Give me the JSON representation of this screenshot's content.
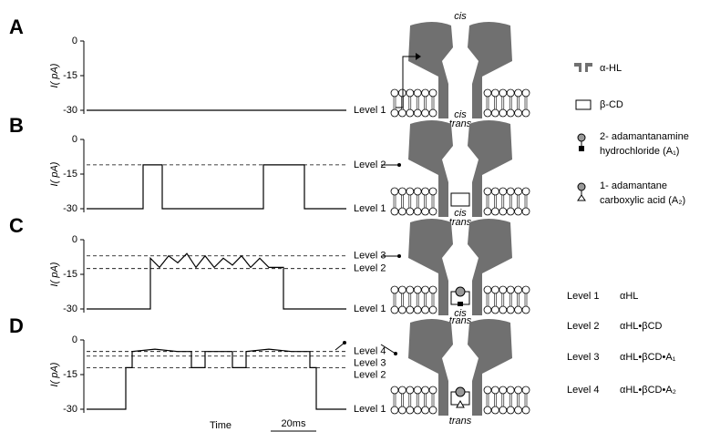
{
  "chart_data": [
    {
      "type": "line",
      "panel": "A",
      "ylabel": "I( pA)",
      "xlim": [
        0,
        114
      ],
      "ylim": [
        -30,
        0
      ],
      "yticks": [
        0,
        -15,
        -30
      ],
      "color": "#000000",
      "x": [
        0,
        15,
        30,
        45,
        60,
        75,
        90,
        105,
        114
      ],
      "values": [
        -30,
        -30,
        -30,
        -30,
        -30,
        -30,
        -30,
        -30,
        -30
      ],
      "levels": [
        {
          "name": "Level 1",
          "value": -30,
          "dashed": false
        }
      ]
    },
    {
      "type": "line",
      "panel": "B",
      "ylabel": "I( pA)",
      "xlim": [
        0,
        114
      ],
      "ylim": [
        -30,
        0
      ],
      "yticks": [
        0,
        -15,
        -30
      ],
      "color": "#000000",
      "x": [
        0,
        24.8,
        24.8,
        33.2,
        33.2,
        77.6,
        77.6,
        95.6,
        95.6,
        114
      ],
      "values": [
        -30,
        -30,
        -11,
        -11,
        -30,
        -30,
        -11,
        -11,
        -30,
        -30
      ],
      "levels": [
        {
          "name": "Level 2",
          "value": -11,
          "dashed": true
        },
        {
          "name": "Level 1",
          "value": -30,
          "dashed": false
        }
      ]
    },
    {
      "type": "line",
      "panel": "C",
      "ylabel": "I( pA)",
      "xlim": [
        0,
        114
      ],
      "ylim": [
        -30,
        0
      ],
      "yticks": [
        0,
        -15,
        -30
      ],
      "color": "#000000",
      "x": [
        0,
        28,
        28,
        32,
        36,
        40,
        44,
        48,
        52,
        56,
        60,
        64,
        68,
        72,
        76,
        80,
        84,
        86.4,
        86.4,
        114
      ],
      "values": [
        -30,
        -30,
        -8,
        -12,
        -7,
        -10,
        -6,
        -12,
        -7,
        -12,
        -8,
        -11,
        -7,
        -12,
        -8,
        -12,
        -12,
        -12,
        -30,
        -30
      ],
      "levels": [
        {
          "name": "Level 3",
          "value": -7,
          "dashed": true
        },
        {
          "name": "Level 2",
          "value": -12.5,
          "dashed": true
        },
        {
          "name": "Level 1",
          "value": -30,
          "dashed": false
        }
      ]
    },
    {
      "type": "line",
      "panel": "D",
      "ylabel": "I( pA)",
      "xlabel": "Time",
      "scale_bar": {
        "label": "20ms",
        "value": 20
      },
      "xlim": [
        0,
        114
      ],
      "ylim": [
        -30,
        0
      ],
      "yticks": [
        0,
        -15,
        -30
      ],
      "color": "#000000",
      "x": [
        0,
        17.2,
        17.2,
        20,
        20,
        30,
        40,
        46,
        46,
        52,
        52,
        58,
        64,
        64,
        70,
        70,
        80,
        90,
        98,
        98,
        100.8,
        100.8,
        114
      ],
      "values": [
        -30,
        -30,
        -12,
        -12,
        -5,
        -4,
        -5,
        -5,
        -12,
        -12,
        -5,
        -5,
        -5,
        -12,
        -12,
        -5,
        -4,
        -5,
        -5,
        -12,
        -12,
        -30,
        -30
      ],
      "levels": [
        {
          "name": "Level 4",
          "value": -5,
          "dashed": true
        },
        {
          "name": "Level 3",
          "value": -7,
          "dashed": true
        },
        {
          "name": "Level 2",
          "value": -12,
          "dashed": true
        },
        {
          "name": "Level 1",
          "value": -30,
          "dashed": false
        }
      ]
    }
  ],
  "schematics": [
    {
      "top": "cis",
      "bottom": "trans"
    },
    {
      "top": "cis",
      "bottom": "trans"
    },
    {
      "top": "cis",
      "bottom": "trans"
    },
    {
      "top": "cis",
      "bottom": "trans"
    }
  ],
  "legend": [
    {
      "lines": [
        "α-HL"
      ]
    },
    {
      "lines": [
        "β-CD"
      ]
    },
    {
      "lines": [
        "2- adamantanamine",
        "hydrochloride (A₁)"
      ]
    },
    {
      "lines": [
        "1- adamantane",
        "carboxylic acid (A₂)"
      ]
    }
  ],
  "level_key": [
    {
      "level": "Level 1",
      "complex": "αHL"
    },
    {
      "level": "Level 2",
      "complex": "αHL•βCD"
    },
    {
      "level": "Level 3",
      "complex": "αHL•βCD•A₁"
    },
    {
      "level": "Level 4",
      "complex": "αHL•βCD•A₂"
    }
  ]
}
